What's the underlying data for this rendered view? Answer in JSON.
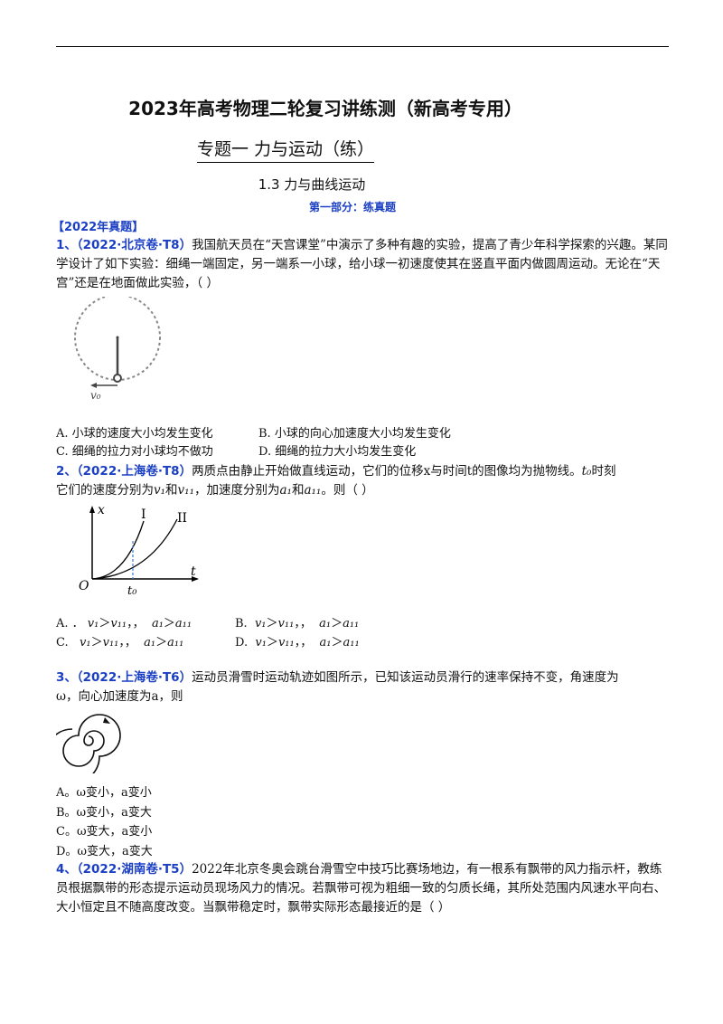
{
  "doc": {
    "title": "2023年高考物理二轮复习讲练测（新高考专用）",
    "subtitle": "专题一  力与运动（练）",
    "section": "1.3 力与曲线运动",
    "part": "第一部分：练真题",
    "year_heading": "【2022年真题】"
  },
  "q1": {
    "num": "1、（2022·北京卷·T8）",
    "text": "我国航天员在“天宫课堂”中演示了多种有趣的实验，提高了青少年科学探索的兴趣。某同学设计了如下实验：细绳一端固定，另一端系一小球，给小球一初速度使其在竖直平面内做圆周运动。无论在“天宫”还是在地面做此实验，（      ）",
    "fig_label": "v₀",
    "optA": "A. 小球的速度大小均发生变化",
    "optB": "B. 小球的向心加速度大小均发生变化",
    "optC": "C. 细绳的拉力对小球均不做功",
    "optD": "D. 细绳的拉力大小均发生变化"
  },
  "q2": {
    "num": "2、（2022·上海卷·T8）",
    "text1": "两质点由静止开始做直线运动，它们的位移x与时间t的图像均为抛物线。",
    "t0": "t₀",
    "text2": "时刻",
    "text3": "它们的速度分别为",
    "v1": "v₁",
    "and1": "和",
    "v2": "v₁₁",
    "text4": "，加速度分别为",
    "a1": "a₁",
    "and2": "和",
    "a2": "a₁₁",
    "text5": "。则（      ）",
    "fig": {
      "xlabel": "x",
      "tlabel": "t",
      "origin": "O",
      "t0": "t₀",
      "curve1": "I",
      "curve2": "II"
    },
    "optA_p": "A. ．",
    "optB_p": "B.",
    "optC_p": "C.",
    "optD_p": "D.",
    "gt": "＞",
    "lt": "＜",
    "sep": "，，"
  },
  "q3": {
    "num": "3、（2022·上海卷·T6）",
    "text1": "运动员滑雪时运动轨迹如图所示，已知该运动员滑行的速率保持不变，角速度为",
    "text2": "ω，向心加速度为a，则",
    "optA": "A。ω变小，a变小",
    "optB": "B。ω变小，a变大",
    "optC": "C。ω变大，a变小",
    "optD": "D。ω变大，a变大"
  },
  "q4": {
    "num": "4、（2022·湖南卷·T5）",
    "text": "2022年北京冬奥会跳台滑雪空中技巧比赛场地边，有一根系有飘带的风力指示杆，教练员根据飘带的形态提示运动员现场风力的情况。若飘带可视为粗细一致的匀质长绳，其所处范围内风速水平向右、大小恒定且不随高度改变。当飘带稳定时，飘带实际形态最接近的是（      ）"
  }
}
